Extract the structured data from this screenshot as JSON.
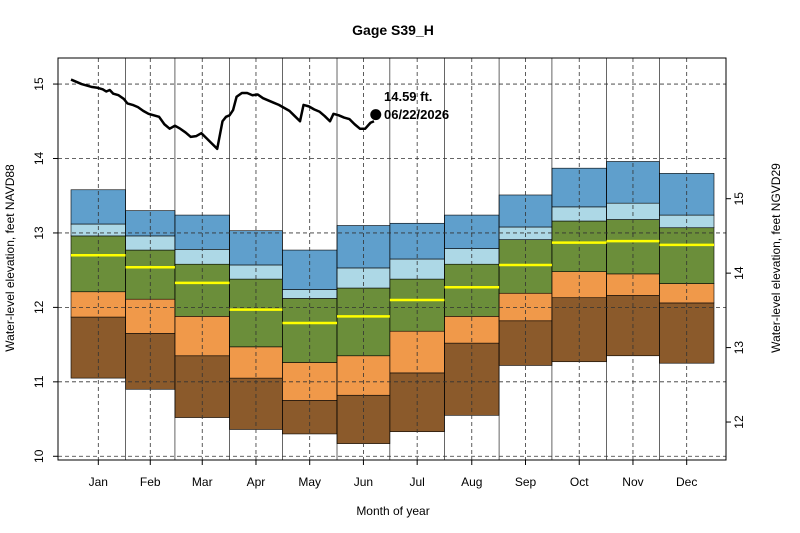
{
  "chart_data": {
    "type": "area",
    "title": "Gage S39_H",
    "xlabel": "Month of year",
    "ylabel_left": "Water-level elevation, feet NAVD88",
    "ylabel_right": "Water-level elevation, feet NGVD29",
    "ylim": [
      9.95,
      15.35
    ],
    "yticks_left": [
      10,
      11,
      12,
      13,
      14,
      15
    ],
    "ngvd29_offset": 1.54,
    "yticks_right": [
      12,
      13,
      14,
      15
    ],
    "grid": true,
    "months": [
      {
        "label": "Jan",
        "start_day": 0,
        "end_day": 31,
        "p0": 11.05,
        "p10": 11.87,
        "p25": 12.21,
        "median": 12.7,
        "p75": 12.96,
        "p90": 13.12,
        "p100": 13.58
      },
      {
        "label": "Feb",
        "start_day": 31,
        "end_day": 59,
        "p0": 10.9,
        "p10": 11.65,
        "p25": 12.11,
        "median": 12.54,
        "p75": 12.77,
        "p90": 12.96,
        "p100": 13.3
      },
      {
        "label": "Mar",
        "start_day": 59,
        "end_day": 90,
        "p0": 10.52,
        "p10": 11.35,
        "p25": 11.88,
        "median": 12.33,
        "p75": 12.58,
        "p90": 12.78,
        "p100": 13.24
      },
      {
        "label": "Apr",
        "start_day": 90,
        "end_day": 120,
        "p0": 10.36,
        "p10": 11.05,
        "p25": 11.47,
        "median": 11.97,
        "p75": 12.38,
        "p90": 12.57,
        "p100": 13.03
      },
      {
        "label": "May",
        "start_day": 120,
        "end_day": 151,
        "p0": 10.3,
        "p10": 10.75,
        "p25": 11.26,
        "median": 11.79,
        "p75": 12.12,
        "p90": 12.24,
        "p100": 12.77
      },
      {
        "label": "Jun",
        "start_day": 151,
        "end_day": 181,
        "p0": 10.17,
        "p10": 10.82,
        "p25": 11.35,
        "median": 11.88,
        "p75": 12.26,
        "p90": 12.53,
        "p100": 13.1
      },
      {
        "label": "Jul",
        "start_day": 181,
        "end_day": 212,
        "p0": 10.33,
        "p10": 11.12,
        "p25": 11.68,
        "median": 12.1,
        "p75": 12.38,
        "p90": 12.65,
        "p100": 13.13
      },
      {
        "label": "Aug",
        "start_day": 212,
        "end_day": 243,
        "p0": 10.55,
        "p10": 11.52,
        "p25": 11.88,
        "median": 12.27,
        "p75": 12.58,
        "p90": 12.79,
        "p100": 13.24
      },
      {
        "label": "Sep",
        "start_day": 243,
        "end_day": 273,
        "p0": 11.22,
        "p10": 11.82,
        "p25": 12.19,
        "median": 12.57,
        "p75": 12.91,
        "p90": 13.08,
        "p100": 13.51
      },
      {
        "label": "Oct",
        "start_day": 273,
        "end_day": 304,
        "p0": 11.27,
        "p10": 12.13,
        "p25": 12.48,
        "median": 12.87,
        "p75": 13.16,
        "p90": 13.35,
        "p100": 13.87
      },
      {
        "label": "Nov",
        "start_day": 304,
        "end_day": 334,
        "p0": 11.35,
        "p10": 12.16,
        "p25": 12.45,
        "median": 12.89,
        "p75": 13.18,
        "p90": 13.4,
        "p100": 13.96
      },
      {
        "label": "Dec",
        "start_day": 334,
        "end_day": 365,
        "p0": 11.25,
        "p10": 12.06,
        "p25": 12.32,
        "median": 12.84,
        "p75": 13.07,
        "p90": 13.24,
        "p100": 13.8
      }
    ],
    "band_colors": [
      "#8b5a2b",
      "#f0994a",
      "#6b8e3a",
      "#add8e6",
      "#5f9fcc"
    ],
    "median_color": "#ffff00",
    "current_series": {
      "color": "#000000",
      "points": [
        [
          0,
          15.06
        ],
        [
          3,
          15.03
        ],
        [
          6,
          15.0
        ],
        [
          9,
          14.98
        ],
        [
          12,
          14.96
        ],
        [
          15,
          14.95
        ],
        [
          18,
          14.93
        ],
        [
          20,
          14.9
        ],
        [
          22,
          14.92
        ],
        [
          24,
          14.87
        ],
        [
          27,
          14.85
        ],
        [
          30,
          14.8
        ],
        [
          32,
          14.74
        ],
        [
          35,
          14.72
        ],
        [
          38,
          14.69
        ],
        [
          41,
          14.64
        ],
        [
          44,
          14.6
        ],
        [
          47,
          14.58
        ],
        [
          50,
          14.56
        ],
        [
          53,
          14.46
        ],
        [
          56,
          14.4
        ],
        [
          59,
          14.44
        ],
        [
          62,
          14.4
        ],
        [
          65,
          14.35
        ],
        [
          68,
          14.29
        ],
        [
          71,
          14.3
        ],
        [
          74,
          14.34
        ],
        [
          77,
          14.27
        ],
        [
          80,
          14.2
        ],
        [
          83,
          14.13
        ],
        [
          86,
          14.5
        ],
        [
          88,
          14.56
        ],
        [
          90,
          14.58
        ],
        [
          92,
          14.65
        ],
        [
          94,
          14.83
        ],
        [
          97,
          14.88
        ],
        [
          100,
          14.88
        ],
        [
          103,
          14.85
        ],
        [
          106,
          14.86
        ],
        [
          109,
          14.81
        ],
        [
          112,
          14.78
        ],
        [
          115,
          14.75
        ],
        [
          118,
          14.72
        ],
        [
          121,
          14.68
        ],
        [
          124,
          14.64
        ],
        [
          127,
          14.57
        ],
        [
          130,
          14.5
        ],
        [
          132,
          14.72
        ],
        [
          135,
          14.7
        ],
        [
          138,
          14.66
        ],
        [
          141,
          14.63
        ],
        [
          144,
          14.57
        ],
        [
          147,
          14.5
        ],
        [
          149,
          14.6
        ],
        [
          152,
          14.58
        ],
        [
          155,
          14.55
        ],
        [
          158,
          14.53
        ],
        [
          161,
          14.46
        ],
        [
          164,
          14.4
        ],
        [
          167,
          14.4
        ],
        [
          170,
          14.48
        ],
        [
          172,
          14.5
        ]
      ],
      "end_point": {
        "day": 173,
        "value": 14.59
      }
    },
    "annotation": {
      "value_text": "14.59 ft.",
      "date_text": "06/22/2026"
    }
  }
}
